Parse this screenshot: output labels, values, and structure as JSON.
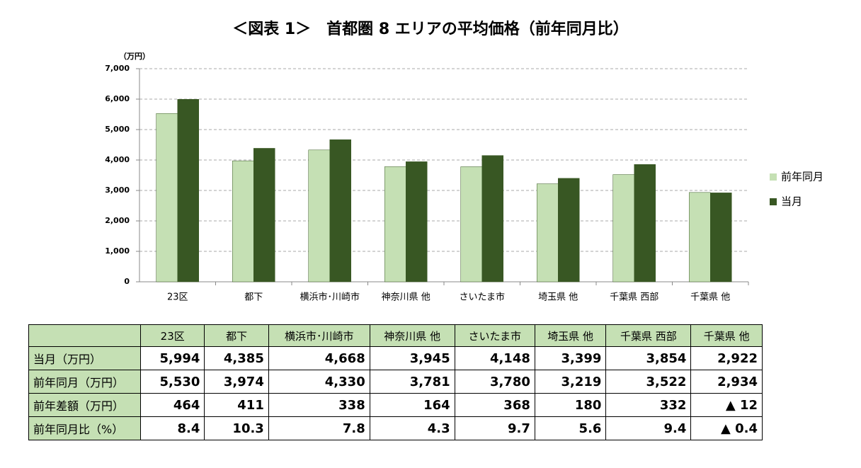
{
  "chart_data": {
    "type": "bar",
    "title": "＜図表 1＞　首都圏 8 エリアの平均価格（前年同月比）",
    "y_unit": "（万円）",
    "categories": [
      "23区",
      "都下",
      "横浜市･川崎市",
      "神奈川県 他",
      "さいたま市",
      "埼玉県 他",
      "千葉県 西部",
      "千葉県 他"
    ],
    "series": [
      {
        "name": "前年同月",
        "color": "#c5e0b4",
        "values": [
          5530,
          3974,
          4330,
          3781,
          3780,
          3219,
          3522,
          2934
        ]
      },
      {
        "name": "当月",
        "color": "#385723",
        "values": [
          5994,
          4385,
          4668,
          3945,
          4148,
          3399,
          3854,
          2922
        ]
      }
    ],
    "ylim": [
      0,
      7000
    ],
    "yticks": [
      0,
      {
        "value": 1000,
        "label": "1,000"
      },
      {
        "value": 2000,
        "label": "2,000"
      },
      {
        "value": 3000,
        "label": "3,000"
      },
      {
        "value": 4000,
        "label": "4,000"
      },
      {
        "value": 5000,
        "label": "5,000"
      },
      {
        "value": 6000,
        "label": "6,000"
      },
      {
        "value": 7000,
        "label": "7,000"
      }
    ],
    "grid": true,
    "legend": "right"
  },
  "table": {
    "header": [
      "23区",
      "都下",
      "横浜市･川崎市",
      "神奈川県 他",
      "さいたま市",
      "埼玉県 他",
      "千葉県 西部",
      "千葉県 他"
    ],
    "rows": [
      [
        "当月（万円）",
        "5,994",
        "4,385",
        "4,668",
        "3,945",
        "4,148",
        "3,399",
        "3,854",
        "2,922"
      ],
      [
        "前年同月（万円）",
        "5,530",
        "3,974",
        "4,330",
        "3,781",
        "3,780",
        "3,219",
        "3,522",
        "2,934"
      ],
      [
        "前年差額（万円）",
        "464",
        "411",
        "338",
        "164",
        "368",
        "180",
        "332",
        "▲ 12"
      ],
      [
        "前年同月比（%）",
        "8.4",
        "10.3",
        "7.8",
        "4.3",
        "9.7",
        "5.6",
        "9.4",
        "▲ 0.4"
      ]
    ]
  }
}
